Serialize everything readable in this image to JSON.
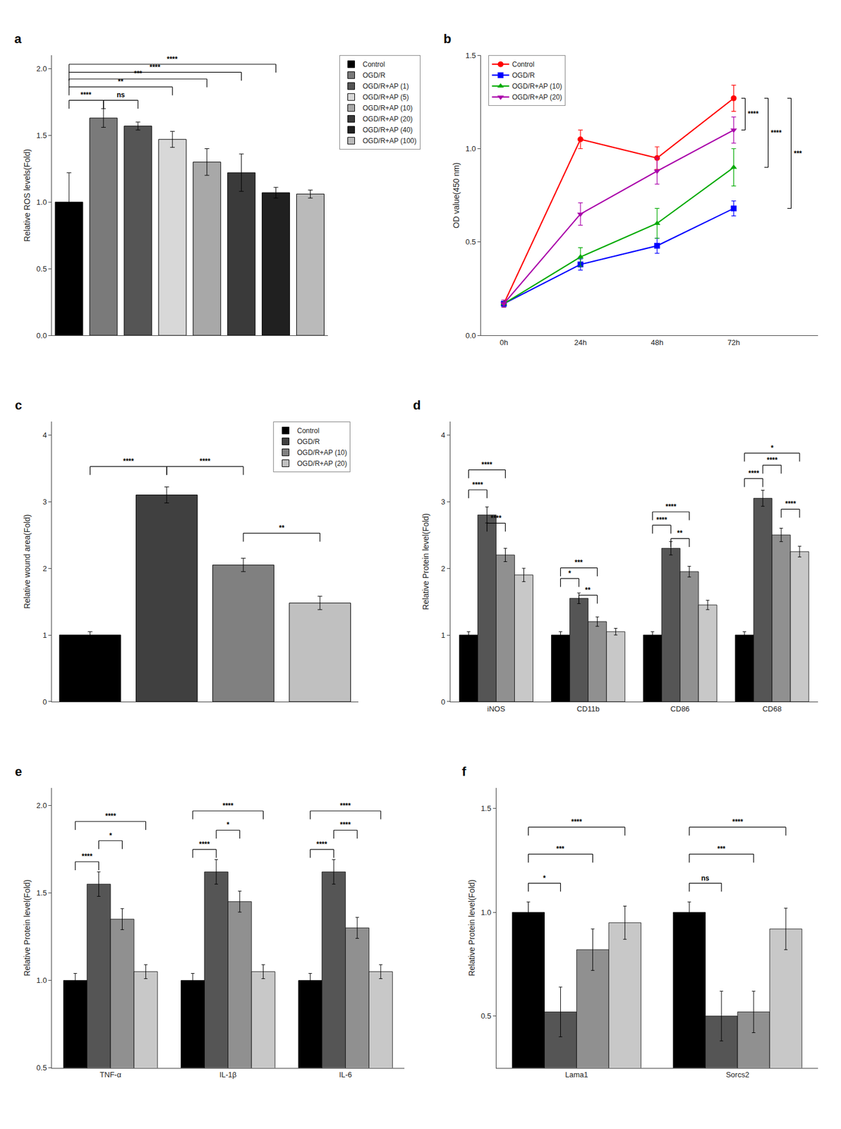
{
  "chart_data": [
    {
      "type": "bar",
      "title": "a",
      "ylabel": "Relative ROS levels(Fold)",
      "categories": [
        "Control",
        "OGD/R",
        "OGD/R+AP (1)",
        "OGD/R+AP (5)",
        "OGD/R+AP (10)",
        "OGD/R+AP (20)",
        "OGD/R+AP (40)",
        "OGD/R+AP (100)"
      ],
      "values": [
        1.0,
        1.63,
        1.57,
        1.47,
        1.3,
        1.22,
        1.07,
        1.06
      ],
      "errors": [
        0.22,
        0.07,
        0.03,
        0.06,
        0.1,
        0.14,
        0.04,
        0.03
      ],
      "colors": [
        "#000000",
        "#7a7a7a",
        "#555555",
        "#d8d8d8",
        "#a8a8a8",
        "#3a3a3a",
        "#202020",
        "#bababa"
      ],
      "ylim": [
        0.0,
        2.1
      ],
      "yticks": [
        {
          "value": 0,
          "label": "0.0"
        },
        0.5,
        {
          "value": 1,
          "label": "1.0"
        },
        1.5,
        {
          "value": 2,
          "label": "2.0"
        }
      ],
      "grid": false,
      "tick_labels": "y",
      "legend": "right",
      "annotations": [
        {
          "text": "****",
          "from": "Control",
          "to": "OGD/R",
          "y": 1.7
        },
        {
          "text": "ns",
          "from": "OGD/R",
          "to": "OGD/R+AP (1)",
          "y": 1.7
        },
        {
          "text": "**",
          "from": "Control",
          "to": "OGD/R+AP (5)",
          "y": 1.8
        },
        {
          "text": "***",
          "from": "Control",
          "to": "OGD/R+AP (10)",
          "y": 1.86
        },
        {
          "text": "****",
          "from": "Control",
          "to": "OGD/R+AP (20)",
          "y": 1.91
        },
        {
          "text": "****",
          "from": "Control",
          "to": "OGD/R+AP (40)",
          "y": 1.97
        }
      ]
    },
    {
      "type": "line",
      "title": "b",
      "ylabel": "OD value(450 nm)",
      "categories": [
        "0h",
        "24h",
        "48h",
        "72h"
      ],
      "series": [
        {
          "name": "Control",
          "color": "#ff0000",
          "marker": "circle",
          "values": [
            0.17,
            1.05,
            0.95,
            1.27
          ],
          "errors": [
            0.02,
            0.05,
            0.06,
            0.07
          ]
        },
        {
          "name": "OGD/R",
          "color": "#0000ff",
          "marker": "square",
          "values": [
            0.17,
            0.38,
            0.48,
            0.68
          ],
          "errors": [
            0.02,
            0.03,
            0.04,
            0.04
          ]
        },
        {
          "name": "OGD/R+AP (10)",
          "color": "#00aa00",
          "marker": "triangle-up",
          "values": [
            0.17,
            0.42,
            0.6,
            0.9
          ],
          "errors": [
            0.02,
            0.05,
            0.08,
            0.1
          ]
        },
        {
          "name": "OGD/R+AP (20)",
          "color": "#aa00aa",
          "marker": "triangle-down",
          "values": [
            0.17,
            0.65,
            0.88,
            1.1
          ],
          "errors": [
            0.02,
            0.06,
            0.07,
            0.07
          ]
        }
      ],
      "ylim": [
        0.0,
        1.5
      ],
      "yticks": [
        {
          "value": 0,
          "label": "0.0"
        },
        0.5,
        {
          "value": 1,
          "label": "1.0"
        },
        1.5
      ],
      "grid": false,
      "legend": "upper left",
      "annotations": [
        {
          "text": "****",
          "at": "72h",
          "from": "Control",
          "to": "OGD/R+AP (20)"
        },
        {
          "text": "****",
          "at": "72h",
          "from": "Control",
          "to": "OGD/R+AP (10)"
        },
        {
          "text": "***",
          "at": "72h",
          "from": "Control",
          "to": "OGD/R"
        }
      ]
    },
    {
      "type": "bar",
      "title": "c",
      "ylabel": "Relative wound area(Fold)",
      "categories": [
        "Control",
        "OGD/R",
        "OGD/R+AP (10)",
        "OGD/R+AP (20)"
      ],
      "values": [
        1.0,
        3.1,
        2.05,
        1.48
      ],
      "errors": [
        0.05,
        0.12,
        0.1,
        0.1
      ],
      "colors": [
        "#000000",
        "#404040",
        "#808080",
        "#c0c0c0"
      ],
      "ylim": [
        0,
        4.2
      ],
      "yticks": [
        0,
        1,
        2,
        3,
        4
      ],
      "grid": false,
      "tick_labels": "y",
      "legend": "upper right",
      "annotations": [
        {
          "text": "****",
          "from": "Control",
          "to": "OGD/R",
          "y": 3.4
        },
        {
          "text": "****",
          "from": "OGD/R",
          "to": "OGD/R+AP (10)",
          "y": 3.4
        },
        {
          "text": "**",
          "from": "OGD/R+AP (10)",
          "to": "OGD/R+AP (20)",
          "y": 2.4
        }
      ]
    },
    {
      "type": "bar",
      "title": "d",
      "ylabel": "Relative Protein level(Fold)",
      "categories": [
        "iNOS",
        "CD11b",
        "CD86",
        "CD68"
      ],
      "series": [
        {
          "name": "Control",
          "color": "#000000",
          "values": [
            1.0,
            1.0,
            1.0,
            1.0
          ],
          "errors": [
            0.05,
            0.05,
            0.05,
            0.05
          ]
        },
        {
          "name": "OGD/R",
          "color": "#555555",
          "values": [
            2.8,
            1.55,
            2.3,
            3.05
          ],
          "errors": [
            0.12,
            0.08,
            0.1,
            0.12
          ]
        },
        {
          "name": "OGD/R+AP (10)",
          "color": "#909090",
          "values": [
            2.2,
            1.2,
            1.95,
            2.5
          ],
          "errors": [
            0.1,
            0.07,
            0.08,
            0.1
          ]
        },
        {
          "name": "OGD/R+AP (20)",
          "color": "#c8c8c8",
          "values": [
            1.9,
            1.05,
            1.45,
            2.25
          ],
          "errors": [
            0.1,
            0.05,
            0.07,
            0.08
          ]
        }
      ],
      "ylim": [
        0,
        4.2
      ],
      "yticks": [
        0,
        1,
        2,
        3,
        4
      ],
      "grid": false,
      "legend": false,
      "annotations": [
        {
          "text": "****",
          "group": "iNOS",
          "from": "Control",
          "to": "OGD/R",
          "y": 3.05
        },
        {
          "text": "****",
          "group": "iNOS",
          "from": "Control",
          "to": "OGD/R+AP (10)",
          "y": 3.35
        },
        {
          "text": "****",
          "group": "iNOS",
          "from": "OGD/R",
          "to": "OGD/R+AP (10)",
          "y": 2.55
        },
        {
          "text": "*",
          "group": "CD11b",
          "from": "Control",
          "to": "OGD/R",
          "y": 1.72
        },
        {
          "text": "**",
          "group": "CD11b",
          "from": "OGD/R",
          "to": "OGD/R+AP (10)",
          "y": 1.47
        },
        {
          "text": "***",
          "group": "CD11b",
          "from": "Control",
          "to": "OGD/R+AP (10)",
          "y": 1.88
        },
        {
          "text": "****",
          "group": "CD86",
          "from": "Control",
          "to": "OGD/R",
          "y": 2.52
        },
        {
          "text": "****",
          "group": "CD86",
          "from": "Control",
          "to": "OGD/R+AP (10)",
          "y": 2.72
        },
        {
          "text": "**",
          "group": "CD86",
          "from": "OGD/R",
          "to": "OGD/R+AP (10)",
          "y": 2.32
        },
        {
          "text": "****",
          "group": "CD68",
          "from": "Control",
          "to": "OGD/R",
          "y": 3.22
        },
        {
          "text": "****",
          "group": "CD68",
          "from": "OGD/R",
          "to": "OGD/R+AP (10)",
          "y": 3.42
        },
        {
          "text": "*",
          "group": "CD68",
          "from": "Control",
          "to": "OGD/R+AP (20)",
          "y": 3.6
        },
        {
          "text": "****",
          "group": "CD68",
          "from": "OGD/R+AP (10)",
          "to": "OGD/R+AP (20)",
          "y": 2.76
        }
      ]
    },
    {
      "type": "bar",
      "title": "e",
      "ylabel": "Relative Protein level(Fold)",
      "categories": [
        "TNF-α",
        "IL-1β",
        "IL-6"
      ],
      "series": [
        {
          "name": "Control",
          "color": "#000000",
          "values": [
            1.0,
            1.0,
            1.0
          ],
          "errors": [
            0.04,
            0.04,
            0.04
          ]
        },
        {
          "name": "OGD/R",
          "color": "#555555",
          "values": [
            1.55,
            1.62,
            1.62
          ],
          "errors": [
            0.07,
            0.07,
            0.07
          ]
        },
        {
          "name": "OGD/R+AP (10)",
          "color": "#909090",
          "values": [
            1.35,
            1.45,
            1.3
          ],
          "errors": [
            0.06,
            0.06,
            0.06
          ]
        },
        {
          "name": "OGD/R+AP (20)",
          "color": "#c8c8c8",
          "values": [
            1.05,
            1.05,
            1.05
          ],
          "errors": [
            0.04,
            0.04,
            0.04
          ]
        }
      ],
      "ylim": [
        0.5,
        2.1
      ],
      "yticks": [
        0.5,
        {
          "value": 1,
          "label": "1.0"
        },
        1.5,
        {
          "value": 2,
          "label": "2.0"
        }
      ],
      "grid": false,
      "legend": false,
      "annotations": [
        {
          "text": "****",
          "group": "TNF-α",
          "from": "Control",
          "to": "OGD/R",
          "y": 1.63
        },
        {
          "text": "*",
          "group": "TNF-α",
          "from": "OGD/R",
          "to": "OGD/R+AP (10)",
          "y": 1.75
        },
        {
          "text": "****",
          "group": "TNF-α",
          "from": "Control",
          "to": "OGD/R+AP (20)",
          "y": 1.86
        },
        {
          "text": "****",
          "group": "IL-1β",
          "from": "Control",
          "to": "OGD/R",
          "y": 1.7
        },
        {
          "text": "*",
          "group": "IL-1β",
          "from": "OGD/R",
          "to": "OGD/R+AP (10)",
          "y": 1.81
        },
        {
          "text": "****",
          "group": "IL-1β",
          "from": "Control",
          "to": "OGD/R+AP (20)",
          "y": 1.92
        },
        {
          "text": "****",
          "group": "IL-6",
          "from": "Control",
          "to": "OGD/R",
          "y": 1.7
        },
        {
          "text": "****",
          "group": "IL-6",
          "from": "OGD/R",
          "to": "OGD/R+AP (10)",
          "y": 1.81
        },
        {
          "text": "****",
          "group": "IL-6",
          "from": "Control",
          "to": "OGD/R+AP (20)",
          "y": 1.92
        }
      ]
    },
    {
      "type": "bar",
      "title": "f",
      "ylabel": "Relative Protein level(Fold)",
      "categories": [
        "Lama1",
        "Sorcs2"
      ],
      "series": [
        {
          "name": "Control",
          "color": "#000000",
          "values": [
            1.0,
            1.0
          ],
          "errors": [
            0.05,
            0.05
          ]
        },
        {
          "name": "OGD/R",
          "color": "#555555",
          "values": [
            0.52,
            0.5
          ],
          "errors": [
            0.12,
            0.12
          ]
        },
        {
          "name": "OGD/R+AP (10)",
          "color": "#909090",
          "values": [
            0.82,
            0.52
          ],
          "errors": [
            0.1,
            0.1
          ]
        },
        {
          "name": "OGD/R+AP (20)",
          "color": "#c8c8c8",
          "values": [
            0.95,
            0.92
          ],
          "errors": [
            0.08,
            0.1
          ]
        }
      ],
      "ylim": [
        0.25,
        1.6
      ],
      "yticks": [
        0.5,
        {
          "value": 1,
          "label": "1.0"
        },
        1.5
      ],
      "grid": false,
      "legend": false,
      "annotations": [
        {
          "text": "*",
          "group": "Lama1",
          "from": "Control",
          "to": "OGD/R",
          "y": 1.1
        },
        {
          "text": "***",
          "group": "Lama1",
          "from": "Control",
          "to": "OGD/R+AP (10)",
          "y": 1.24
        },
        {
          "text": "****",
          "group": "Lama1",
          "from": "Control",
          "to": "OGD/R+AP (20)",
          "y": 1.37
        },
        {
          "text": "ns",
          "group": "Sorcs2",
          "from": "Control",
          "to": "OGD/R",
          "y": 1.1
        },
        {
          "text": "***",
          "group": "Sorcs2",
          "from": "Control",
          "to": "OGD/R+AP (10)",
          "y": 1.24
        },
        {
          "text": "****",
          "group": "Sorcs2",
          "from": "Control",
          "to": "OGD/R+AP (20)",
          "y": 1.37
        }
      ]
    }
  ]
}
